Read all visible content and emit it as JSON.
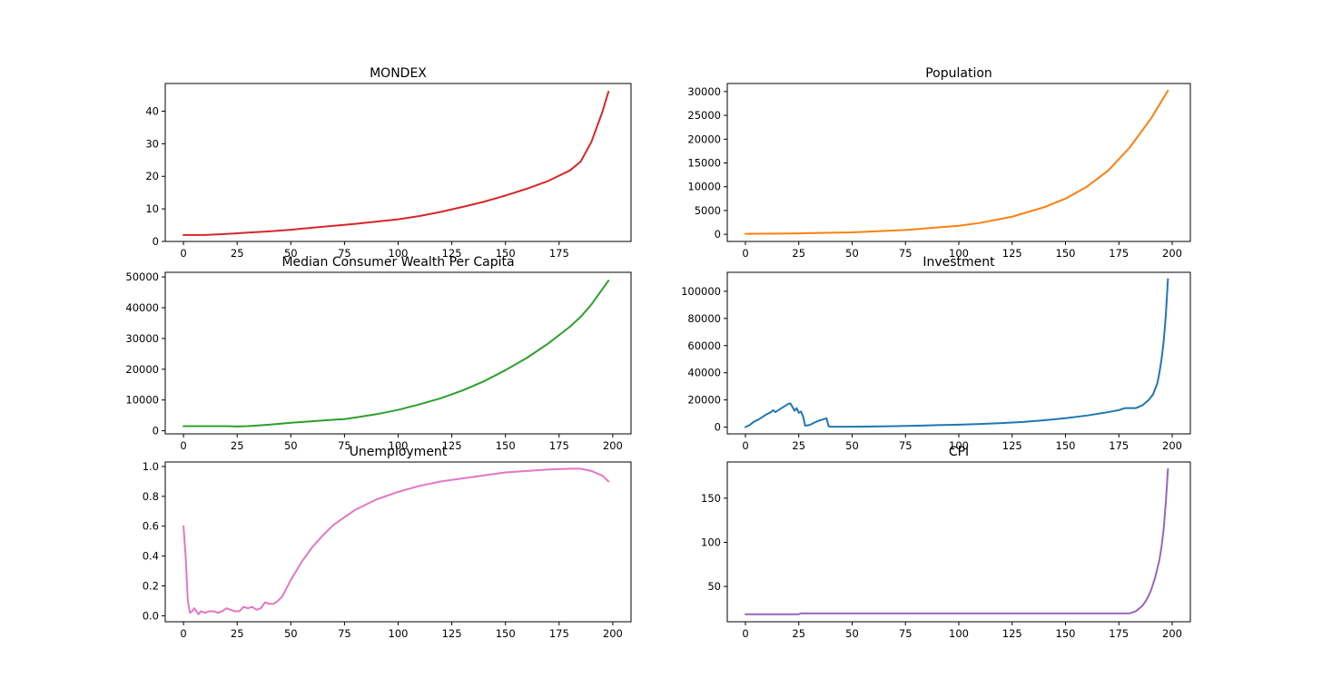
{
  "chart_data": [
    {
      "type": "line",
      "title": "MONDEX",
      "xlabel": "",
      "ylabel": "",
      "xlim": [
        -8.5,
        208.5
      ],
      "ylim": [
        0,
        48.5
      ],
      "xticks": [
        0,
        25,
        50,
        75,
        100,
        125,
        150,
        175
      ],
      "yticks": [
        0,
        10,
        20,
        30,
        40
      ],
      "grid": false,
      "color": "#d62728",
      "series": [
        {
          "x": [
            0,
            10,
            20,
            30,
            40,
            50,
            60,
            70,
            80,
            90,
            100,
            110,
            120,
            130,
            140,
            150,
            160,
            170,
            180,
            185,
            190,
            195,
            198
          ],
          "y": [
            2,
            2,
            2.3,
            2.7,
            3.1,
            3.6,
            4.2,
            4.8,
            5.4,
            6.1,
            6.8,
            7.8,
            9.1,
            10.6,
            12.2,
            14.1,
            16.2,
            18.6,
            21.8,
            24.5,
            30.5,
            39.5,
            46
          ]
        }
      ]
    },
    {
      "type": "line",
      "title": "Population",
      "xlabel": "",
      "ylabel": "",
      "xlim": [
        -8.5,
        208.5
      ],
      "ylim": [
        -1500,
        31700
      ],
      "xticks": [
        0,
        25,
        50,
        75,
        100,
        125,
        150,
        175,
        200
      ],
      "yticks": [
        0,
        5000,
        10000,
        15000,
        20000,
        25000,
        30000
      ],
      "grid": false,
      "color": "#ff7f0e",
      "series": [
        {
          "x": [
            0,
            25,
            50,
            75,
            100,
            110,
            125,
            140,
            150,
            160,
            170,
            180,
            190,
            198
          ],
          "y": [
            100,
            200,
            400,
            900,
            1800,
            2400,
            3700,
            5700,
            7500,
            10000,
            13400,
            18200,
            24300,
            30200
          ]
        }
      ]
    },
    {
      "type": "line",
      "title": "Median Consumer Wealth Per Capita",
      "xlabel": "",
      "ylabel": "",
      "xlim": [
        -8.5,
        208.5
      ],
      "ylim": [
        -1000,
        51500
      ],
      "xticks": [
        0,
        25,
        50,
        75,
        100,
        125,
        150,
        175,
        200
      ],
      "yticks": [
        0,
        10000,
        20000,
        30000,
        40000,
        50000
      ],
      "grid": false,
      "color": "#2ca02c",
      "series": [
        {
          "x": [
            0,
            10,
            20,
            25,
            30,
            40,
            50,
            60,
            70,
            75,
            80,
            90,
            100,
            110,
            120,
            130,
            140,
            150,
            160,
            170,
            180,
            185,
            190,
            198
          ],
          "y": [
            1500,
            1500,
            1500,
            1400,
            1500,
            2000,
            2600,
            3100,
            3600,
            3800,
            4300,
            5400,
            6800,
            8600,
            10600,
            13100,
            16100,
            19700,
            23700,
            28400,
            33800,
            37000,
            41000,
            48800
          ]
        }
      ]
    },
    {
      "type": "line",
      "title": "Investment",
      "xlabel": "",
      "ylabel": "",
      "xlim": [
        -8.5,
        208.5
      ],
      "ylim": [
        -5000,
        114000
      ],
      "xticks": [
        0,
        25,
        50,
        75,
        100,
        125,
        150,
        175,
        200
      ],
      "yticks": [
        0,
        20000,
        40000,
        60000,
        80000,
        100000
      ],
      "grid": false,
      "color": "#1f77b4",
      "series": [
        {
          "x": [
            0,
            2,
            4,
            6,
            8,
            10,
            12,
            13,
            14,
            16,
            18,
            20,
            21,
            22,
            23,
            24,
            25,
            26,
            27,
            28,
            30,
            32,
            34,
            36,
            38,
            39,
            40,
            50,
            60,
            70,
            80,
            90,
            100,
            110,
            120,
            130,
            140,
            150,
            160,
            170,
            175,
            178,
            183,
            186,
            189,
            191,
            193,
            194,
            195,
            196,
            197,
            198
          ],
          "y": [
            0,
            1500,
            4000,
            5500,
            7500,
            9500,
            11000,
            12500,
            11000,
            13000,
            15000,
            17000,
            17500,
            15000,
            12000,
            14000,
            10500,
            11500,
            8000,
            1000,
            1500,
            3000,
            4500,
            5500,
            6500,
            500,
            300,
            300,
            400,
            700,
            1000,
            1400,
            1800,
            2300,
            2900,
            3800,
            5000,
            6500,
            8500,
            11000,
            12500,
            14000,
            14000,
            16000,
            20000,
            24000,
            32000,
            40000,
            50000,
            63000,
            82000,
            109000
          ]
        }
      ]
    },
    {
      "type": "line",
      "title": "Unemployment",
      "xlabel": "",
      "ylabel": "",
      "xlim": [
        -8.5,
        208.5
      ],
      "ylim": [
        -0.04,
        1.03
      ],
      "xticks": [
        0,
        25,
        50,
        75,
        100,
        125,
        150,
        175,
        200
      ],
      "yticks": [
        0.0,
        0.2,
        0.4,
        0.6,
        0.8,
        1.0
      ],
      "ytick_labels": [
        "0.0",
        "0.2",
        "0.4",
        "0.6",
        "0.8",
        "1.0"
      ],
      "grid": false,
      "color": "#e377c2",
      "series": [
        {
          "x": [
            0,
            1,
            2,
            3,
            4,
            5,
            6,
            7,
            8,
            10,
            12,
            14,
            16,
            18,
            20,
            22,
            24,
            26,
            28,
            30,
            32,
            34,
            36,
            38,
            40,
            42,
            44,
            46,
            50,
            55,
            60,
            65,
            70,
            75,
            80,
            90,
            100,
            110,
            120,
            130,
            140,
            150,
            160,
            170,
            180,
            185,
            190,
            195,
            198
          ],
          "y": [
            0.6,
            0.4,
            0.1,
            0.02,
            0.03,
            0.05,
            0.03,
            0.01,
            0.03,
            0.02,
            0.03,
            0.03,
            0.02,
            0.03,
            0.05,
            0.04,
            0.03,
            0.03,
            0.06,
            0.05,
            0.06,
            0.04,
            0.05,
            0.09,
            0.08,
            0.08,
            0.1,
            0.13,
            0.24,
            0.36,
            0.46,
            0.54,
            0.61,
            0.66,
            0.71,
            0.78,
            0.83,
            0.87,
            0.9,
            0.92,
            0.94,
            0.96,
            0.97,
            0.98,
            0.985,
            0.985,
            0.97,
            0.94,
            0.9
          ]
        }
      ]
    },
    {
      "type": "line",
      "title": "CPI",
      "xlabel": "",
      "ylabel": "",
      "xlim": [
        -8.5,
        208.5
      ],
      "ylim": [
        10,
        191
      ],
      "xticks": [
        0,
        25,
        50,
        75,
        100,
        125,
        150,
        175,
        200
      ],
      "yticks": [
        50,
        100,
        150
      ],
      "grid": false,
      "color": "#9467bd",
      "series": [
        {
          "x": [
            0,
            25,
            26,
            50,
            100,
            150,
            175,
            180,
            183,
            186,
            188,
            190,
            192,
            194,
            195,
            196,
            197,
            198
          ],
          "y": [
            18.5,
            18.5,
            19.5,
            19.5,
            19.5,
            19.5,
            19.5,
            19.5,
            22,
            28,
            35,
            45,
            60,
            80,
            95,
            115,
            145,
            183
          ]
        }
      ]
    }
  ]
}
